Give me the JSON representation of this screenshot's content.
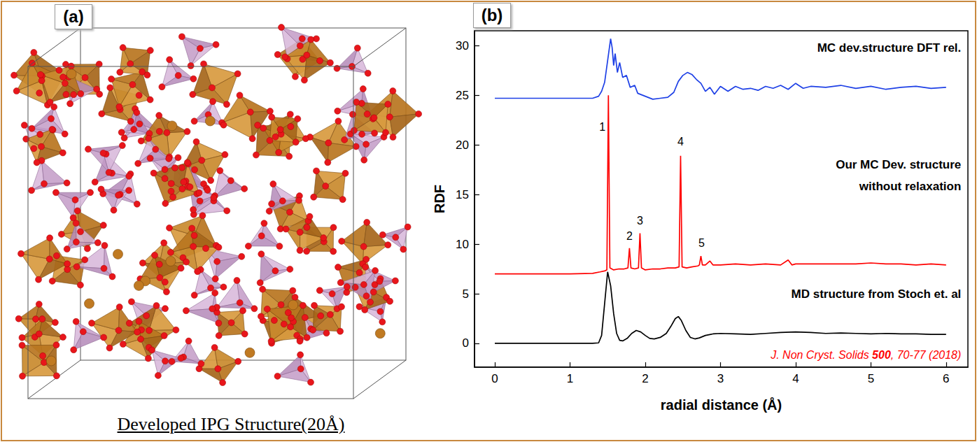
{
  "panel_a": {
    "label": "(a)",
    "caption": "Developed IPG Structure(20Å)"
  },
  "chart_data": {
    "type": "line",
    "panel_label": "(b)",
    "x_label": "radial distance (Å)",
    "y_label": "RDF",
    "xlim": [
      -0.27,
      6.29
    ],
    "xticks": [
      0,
      1,
      2,
      3,
      4,
      5,
      6
    ],
    "ylim": [
      -2.4,
      31.5
    ],
    "yticks": [
      0,
      5,
      10,
      15,
      20,
      25,
      30
    ],
    "grid": false,
    "series": [
      {
        "color": "#1e40e6",
        "x": [
          0,
          0.5,
          1.0,
          1.3,
          1.38,
          1.42,
          1.46,
          1.5,
          1.54,
          1.56,
          1.58,
          1.6,
          1.63,
          1.66,
          1.7,
          1.75,
          1.8,
          1.86,
          1.9,
          2.0,
          2.1,
          2.2,
          2.3,
          2.38,
          2.44,
          2.5,
          2.56,
          2.62,
          2.68,
          2.74,
          2.8,
          2.86,
          2.92,
          3.0,
          3.1,
          3.2,
          3.3,
          3.4,
          3.5,
          3.6,
          3.7,
          3.8,
          3.9,
          4.0,
          4.1,
          4.2,
          4.4,
          4.6,
          4.8,
          5.0,
          5.2,
          5.4,
          5.6,
          5.8,
          6.0
        ],
        "values": [
          24.7,
          24.7,
          24.7,
          24.7,
          24.9,
          25.4,
          26.3,
          28.5,
          30.7,
          29.8,
          28.0,
          29.2,
          27.3,
          28.3,
          26.8,
          27.0,
          25.8,
          26.0,
          25.2,
          24.9,
          24.6,
          24.7,
          24.8,
          25.3,
          26.4,
          27.0,
          27.3,
          27.1,
          26.6,
          26.2,
          25.4,
          25.8,
          25.1,
          25.9,
          25.4,
          25.9,
          25.6,
          25.7,
          25.5,
          25.9,
          25.7,
          26.0,
          25.6,
          26.2,
          25.7,
          25.9,
          25.8,
          26.0,
          25.7,
          25.9,
          25.6,
          25.8,
          25.9,
          25.7,
          25.8
        ]
      },
      {
        "color": "#ff0000",
        "x": [
          0,
          0.5,
          1.0,
          1.3,
          1.4,
          1.46,
          1.49,
          1.51,
          1.53,
          1.58,
          1.65,
          1.72,
          1.77,
          1.79,
          1.81,
          1.86,
          1.91,
          1.93,
          1.95,
          2.0,
          2.1,
          2.2,
          2.3,
          2.4,
          2.45,
          2.47,
          2.49,
          2.55,
          2.62,
          2.7,
          2.72,
          2.74,
          2.76,
          2.8,
          2.86,
          2.9,
          2.95,
          3.0,
          3.2,
          3.4,
          3.6,
          3.8,
          3.9,
          3.95,
          4.0,
          4.2,
          4.4,
          4.6,
          4.8,
          5.0,
          5.2,
          5.4,
          5.6,
          5.8,
          6.0
        ],
        "values": [
          7.0,
          7.0,
          7.0,
          7.05,
          7.2,
          7.3,
          7.4,
          25.0,
          7.6,
          7.4,
          7.5,
          7.5,
          7.6,
          9.6,
          7.6,
          7.5,
          7.6,
          11.1,
          7.6,
          7.4,
          7.5,
          7.5,
          7.6,
          7.6,
          7.7,
          18.9,
          7.7,
          7.6,
          7.7,
          7.8,
          7.9,
          8.8,
          7.9,
          7.9,
          8.3,
          7.9,
          7.9,
          7.9,
          8.0,
          7.9,
          8.0,
          7.9,
          8.4,
          7.9,
          8.0,
          8.0,
          8.0,
          8.0,
          8.0,
          8.1,
          8.0,
          8.0,
          7.9,
          8.0,
          7.9
        ]
      },
      {
        "color": "#000000",
        "x": [
          0,
          0.5,
          1.0,
          1.3,
          1.38,
          1.42,
          1.46,
          1.5,
          1.54,
          1.58,
          1.62,
          1.66,
          1.7,
          1.76,
          1.82,
          1.88,
          1.94,
          2.0,
          2.06,
          2.12,
          2.2,
          2.28,
          2.34,
          2.4,
          2.44,
          2.48,
          2.54,
          2.6,
          2.66,
          2.72,
          2.8,
          2.9,
          3.0,
          3.2,
          3.4,
          3.6,
          3.8,
          4.0,
          4.2,
          4.4,
          4.6,
          4.8,
          5.0,
          5.2,
          5.4,
          5.6,
          5.8,
          6.0
        ],
        "values": [
          0,
          0,
          0,
          0,
          0.05,
          0.8,
          4.0,
          7.2,
          5.8,
          3.0,
          1.0,
          0.3,
          0.25,
          0.5,
          1.0,
          1.3,
          1.15,
          0.8,
          0.5,
          0.45,
          0.6,
          1.0,
          1.7,
          2.5,
          2.7,
          2.3,
          1.3,
          0.6,
          0.45,
          0.55,
          0.8,
          0.95,
          1.0,
          0.95,
          0.9,
          1.0,
          1.1,
          1.15,
          1.1,
          1.0,
          1.05,
          1.0,
          0.95,
          1.0,
          0.95,
          0.95,
          0.9,
          0.9
        ]
      }
    ],
    "curve_labels": [
      {
        "text": "MC dev.structure DFT rel.",
        "x": 6.2,
        "y": 29.8
      },
      {
        "text": "Our MC Dev. structure",
        "x": 6.2,
        "y": 18.0
      },
      {
        "text": "without relaxation",
        "x": 6.2,
        "y": 15.8
      },
      {
        "text": "MD structure from Stoch et. al",
        "x": 6.2,
        "y": 5.0
      }
    ],
    "peak_labels": [
      {
        "text": "1",
        "x": 1.43,
        "y": 21.8
      },
      {
        "text": "2",
        "x": 1.79,
        "y": 10.8
      },
      {
        "text": "3",
        "x": 1.93,
        "y": 12.4
      },
      {
        "text": "4",
        "x": 2.47,
        "y": 20.3
      },
      {
        "text": "5",
        "x": 2.75,
        "y": 10.1
      }
    ],
    "citation": {
      "parts": [
        "J. Non Cryst. Solids ",
        "500",
        ", 70-77 (2018)"
      ],
      "x": 6.2,
      "y": -1.2
    }
  }
}
